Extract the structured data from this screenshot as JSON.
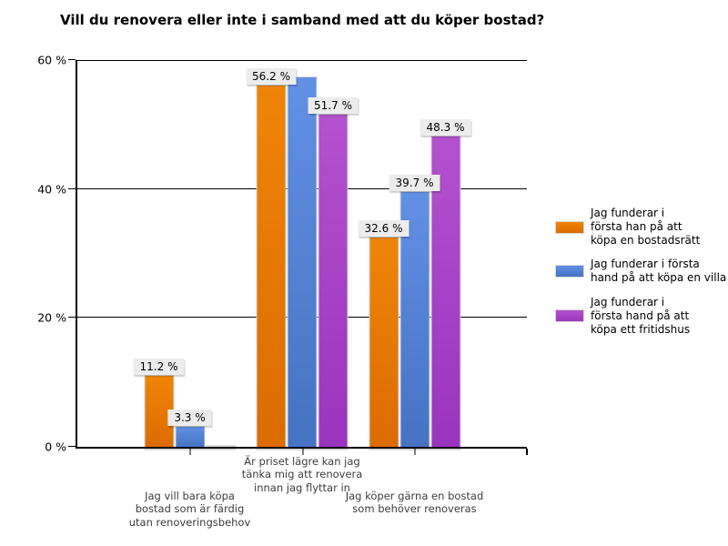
{
  "title": "Vill du renovera eller inte i samband med att du köper bostad?",
  "colors": {
    "axis": "#000000",
    "grid": "#000000",
    "bar_border": "#D9D9D9",
    "value_label_bg": "#ECECEC",
    "category_label_text": "#3D3D3D"
  },
  "chart_data": {
    "type": "bar",
    "title": "Vill du renovera eller inte i samband med att du köper bostad?",
    "xlabel": "",
    "ylabel": "",
    "ylim": [
      0,
      60
    ],
    "yticks": [
      {
        "value": 0,
        "label": "0 %"
      },
      {
        "value": 20,
        "label": "20 %"
      },
      {
        "value": 40,
        "label": "40 %"
      },
      {
        "value": 60,
        "label": "60 %"
      }
    ],
    "grid": true,
    "legend_position": "right",
    "categories": [
      "Jag vill bara köpa\nbostad som är färdig\nutan renoveringsbehov",
      "Är priset lägre kan jag\ntänka mig att renovera\ninnan jag flyttar in",
      "Jag köper gärna en bostad\nsom behöver renoveras"
    ],
    "series": [
      {
        "name": "Jag funderar i\nförsta han på att\nköpa en bostadsrätt",
        "color": "#E87A06",
        "gradient_top": "#EF8507",
        "gradient_bottom": "#DC6B00",
        "values": [
          11.2,
          56.2,
          32.6
        ],
        "value_labels": [
          "11.2 %",
          "56.2 %",
          "32.6 %"
        ]
      },
      {
        "name": "Jag funderar i första\nhand på att köpa en villa",
        "color": "#5484D8",
        "gradient_top": "#6290E4",
        "gradient_bottom": "#4672C4",
        "values": [
          3.3,
          57.5,
          39.7
        ],
        "value_labels": [
          "3.3 %",
          null,
          "39.7 %"
        ]
      },
      {
        "name": "Jag funderar i\nförsta hand på att\nköpa ett fritidshus",
        "color": "#AC46C8",
        "gradient_top": "#B351CE",
        "gradient_bottom": "#9B34BD",
        "values": [
          0,
          51.7,
          48.3
        ],
        "value_labels": [
          null,
          "51.7 %",
          "48.3 %"
        ]
      }
    ]
  }
}
